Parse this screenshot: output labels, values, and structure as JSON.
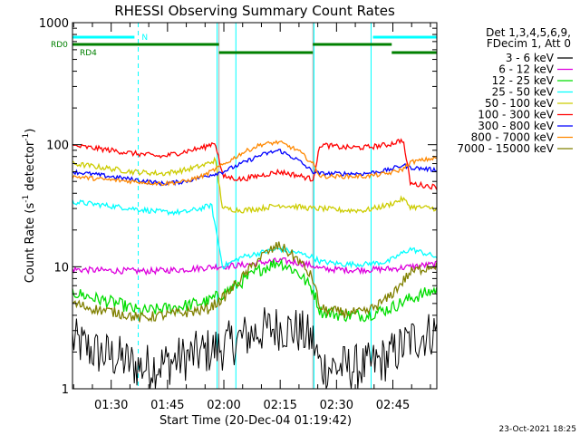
{
  "chart_data": {
    "type": "line",
    "title": "RHESSI Observing Summary Count Rates",
    "xlabel": "Start Time (20-Dec-04 01:19:42)",
    "ylabel_main": "Count Rate (s",
    "ylabel_sup1": "-1",
    "ylabel_mid": " detector",
    "ylabel_sup2": "-1",
    "ylabel_end": ")",
    "yscale": "log",
    "ylim": [
      1,
      1000
    ],
    "xlim_minutes": [
      0,
      97
    ],
    "x_ticks": [
      {
        "minutes": 10.3,
        "label": "01:30"
      },
      {
        "minutes": 25.3,
        "label": "01:45"
      },
      {
        "minutes": 40.3,
        "label": "02:00"
      },
      {
        "minutes": 55.3,
        "label": "02:15"
      },
      {
        "minutes": 70.3,
        "label": "02:30"
      },
      {
        "minutes": 85.3,
        "label": "02:45"
      }
    ],
    "y_ticks": [
      {
        "value": 1,
        "label": "1"
      },
      {
        "value": 10,
        "label": "10"
      },
      {
        "value": 100,
        "label": "100"
      },
      {
        "value": 1000,
        "label": "1000"
      }
    ],
    "legend_header": [
      "Det 1,3,4,5,6,9,",
      "FDecim 1, Att 0"
    ],
    "legend_placement": "right",
    "series": [
      {
        "name": "3 - 6 keV",
        "color": "#000000",
        "x": [
          0,
          6,
          12,
          18,
          24,
          30,
          35,
          40,
          45,
          50,
          55,
          60,
          64,
          66,
          72,
          78,
          84,
          90,
          97
        ],
        "y": [
          2.5,
          2.0,
          1.8,
          1.5,
          1.6,
          1.8,
          2.0,
          2.2,
          2.6,
          3.0,
          3.2,
          3.0,
          2.5,
          1.5,
          1.5,
          1.5,
          1.8,
          2.5,
          3.0
        ]
      },
      {
        "name": "6 - 12 keV",
        "color": "#dd00dd",
        "x": [
          0,
          10,
          20,
          30,
          38,
          45,
          52,
          56,
          60,
          64,
          66,
          75,
          85,
          90,
          97
        ],
        "y": [
          9.5,
          9.3,
          9.2,
          9.5,
          10.0,
          10.3,
          11.0,
          11.2,
          10.8,
          10.2,
          9.6,
          9.4,
          9.6,
          10.0,
          10.5
        ]
      },
      {
        "name": "12 - 25 keV",
        "color": "#00dd00",
        "x": [
          0,
          6,
          12,
          18,
          24,
          30,
          36,
          40,
          45,
          50,
          55,
          60,
          64,
          66,
          72,
          78,
          84,
          90,
          97
        ],
        "y": [
          6.2,
          5.5,
          5.0,
          4.3,
          4.5,
          4.8,
          5.2,
          6.0,
          7.5,
          9.5,
          11.0,
          9.0,
          6.5,
          4.3,
          4.0,
          4.0,
          4.5,
          5.5,
          6.5
        ]
      },
      {
        "name": "25 - 50 keV",
        "color": "#00ffff",
        "x": [
          0,
          8,
          16,
          24,
          30,
          34,
          37,
          40,
          45,
          50,
          55,
          60,
          64,
          66,
          72,
          78,
          84,
          88,
          90,
          97
        ],
        "y": [
          34,
          32,
          30,
          28,
          28,
          30,
          32,
          10,
          12,
          13,
          14,
          13,
          12,
          11,
          10.5,
          10.5,
          11,
          13,
          14,
          12
        ]
      },
      {
        "name": "50 - 100 keV",
        "color": "#cccc00",
        "x": [
          0,
          8,
          16,
          24,
          30,
          35,
          38,
          40,
          45,
          50,
          55,
          60,
          64,
          66,
          72,
          78,
          84,
          88,
          90,
          97
        ],
        "y": [
          70,
          65,
          60,
          58,
          62,
          68,
          75,
          30,
          29,
          30,
          32,
          31,
          30,
          30,
          29,
          29,
          32,
          36,
          31,
          30
        ]
      },
      {
        "name": "100 - 300 keV",
        "color": "#ff0000",
        "x": [
          0,
          8,
          16,
          24,
          30,
          35,
          38,
          40,
          45,
          50,
          55,
          60,
          64,
          66,
          72,
          78,
          84,
          88,
          90,
          97
        ],
        "y": [
          98,
          92,
          85,
          80,
          88,
          95,
          105,
          55,
          52,
          56,
          60,
          56,
          52,
          100,
          95,
          95,
          100,
          110,
          48,
          45
        ]
      },
      {
        "name": "300 - 800 keV",
        "color": "#0000ff",
        "x": [
          0,
          8,
          16,
          24,
          30,
          35,
          40,
          45,
          50,
          55,
          60,
          64,
          66,
          72,
          78,
          84,
          88,
          90,
          97
        ],
        "y": [
          60,
          56,
          52,
          48,
          50,
          55,
          60,
          70,
          82,
          90,
          75,
          60,
          58,
          58,
          58,
          62,
          68,
          65,
          62
        ]
      },
      {
        "name": "800 - 7000 keV",
        "color": "#ff8800",
        "x": [
          0,
          8,
          16,
          24,
          30,
          35,
          40,
          45,
          50,
          55,
          60,
          64,
          66,
          72,
          78,
          84,
          88,
          90,
          97
        ],
        "y": [
          55,
          52,
          50,
          48,
          50,
          56,
          68,
          85,
          100,
          105,
          90,
          70,
          55,
          55,
          55,
          58,
          63,
          72,
          78
        ]
      },
      {
        "name": "7000 - 15000 keV",
        "color": "#808000",
        "x": [
          0,
          6,
          12,
          18,
          24,
          30,
          36,
          40,
          45,
          50,
          55,
          60,
          64,
          66,
          72,
          78,
          84,
          90,
          97
        ],
        "y": [
          5.0,
          4.5,
          4.2,
          3.8,
          4.0,
          4.2,
          4.5,
          5.5,
          8.0,
          12.0,
          15.0,
          11.5,
          8.0,
          4.5,
          4.2,
          4.2,
          5.5,
          9.0,
          10.5
        ]
      }
    ],
    "flags": [
      {
        "name": "N",
        "color": "#00ffff",
        "row": 1,
        "segments": [
          [
            0,
            16.5
          ],
          [
            80,
            97
          ]
        ]
      },
      {
        "name": "RD0",
        "color": "#008000",
        "row": 2,
        "segments": [
          [
            0,
            39
          ],
          [
            64,
            85
          ]
        ]
      },
      {
        "name": "RD4",
        "color": "#008000",
        "row": 3,
        "segments": [
          [
            39,
            64
          ],
          [
            85,
            97
          ]
        ]
      }
    ],
    "vlines_dashed_cyan": [
      17.5,
      97
    ],
    "vlines_solid_cyan": [
      0,
      38.5,
      43.5,
      64.3,
      79.5
    ],
    "vlines_solid_white": [
      39,
      64
    ],
    "footer_date": "23-Oct-2021 18:25"
  }
}
